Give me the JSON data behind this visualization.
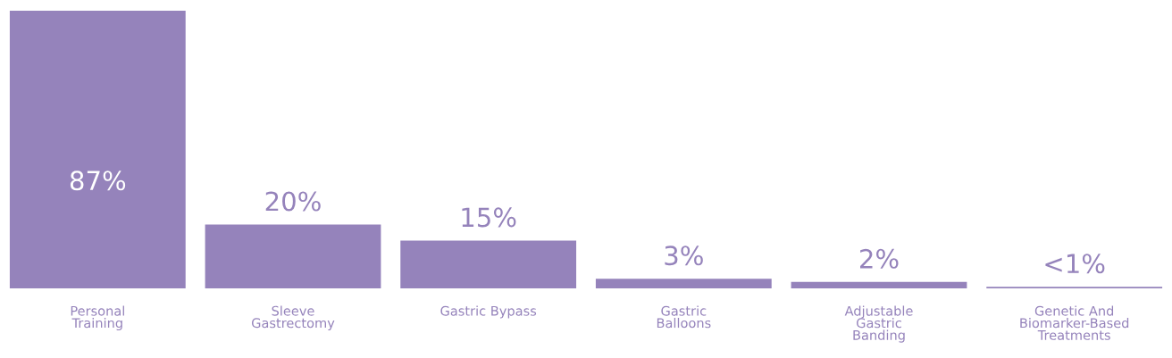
{
  "chart_data": {
    "type": "bar",
    "categories": [
      "Personal\nTraining",
      "Sleeve\nGastrectomy",
      "Gastric Bypass",
      "Gastric\nBalloons",
      "Adjustable\nGastric\nBanding",
      "Genetic And\nBiomarker-Based\nTreatments"
    ],
    "values": [
      87,
      20,
      15,
      3,
      2,
      0.5
    ],
    "value_labels": [
      "87%",
      "20%",
      "15%",
      "3%",
      "2%",
      "<1%"
    ],
    "color": "#9583bb",
    "ylim": [
      0,
      87
    ],
    "grid": false,
    "legend": false
  }
}
